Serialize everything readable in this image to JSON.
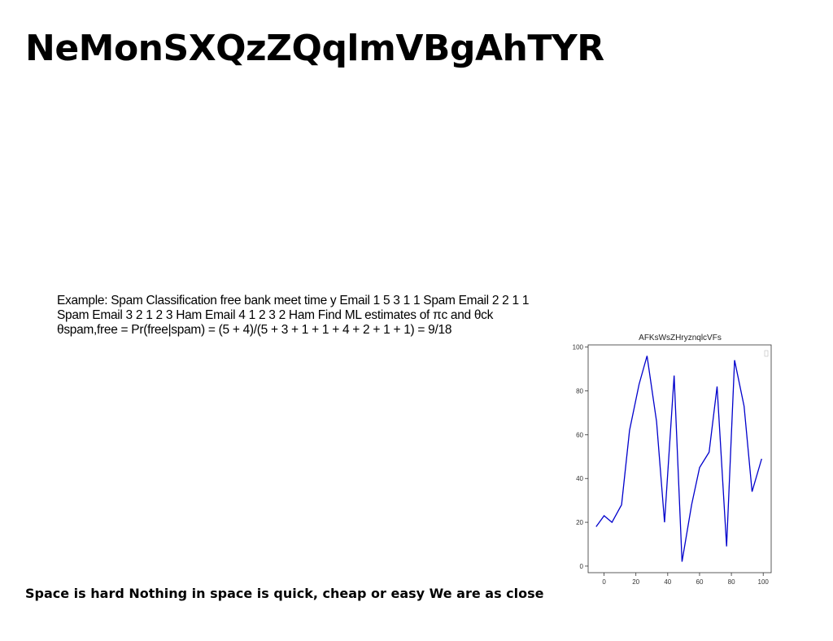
{
  "page": {
    "title": "NeMonSXQzZQqlmVBgAhTYR",
    "example_text": "Example: Spam Classification free bank meet time y Email 1 5 3 1 1 Spam Email 2 2 1 1 Spam Email 3 2 1 2 3 Ham Email 4 1 2 3 2 Ham Find ML estimates of πc and θck θspam,free = Pr(free|spam) = (5 + 4)/(5 + 3 + 1 + 1 + 4 + 2 + 1 + 1) = 9/18",
    "footer_text": "Space is hard Nothing in space is quick, cheap or easy We are as close"
  },
  "chart_data": {
    "type": "line",
    "title": "AFKsWsZHryznqlcVFs",
    "xlabel": "",
    "ylabel": "",
    "x": [
      -5,
      0,
      5,
      11,
      16,
      22,
      27,
      33,
      38,
      44,
      49,
      55,
      60,
      66,
      71,
      77,
      82,
      88,
      93,
      99
    ],
    "y": [
      18,
      23,
      20,
      28,
      62,
      83,
      96,
      66,
      20,
      87,
      2,
      28,
      45,
      52,
      82,
      9,
      94,
      73,
      34,
      49
    ],
    "xlim": [
      -10,
      105
    ],
    "ylim": [
      -3,
      101
    ],
    "xticks": [
      0,
      20,
      40,
      60,
      80,
      100
    ],
    "yticks": [
      0,
      20,
      40,
      60,
      80,
      100
    ],
    "grid": false,
    "legend": "top-right",
    "line_color": "#0000cc"
  }
}
